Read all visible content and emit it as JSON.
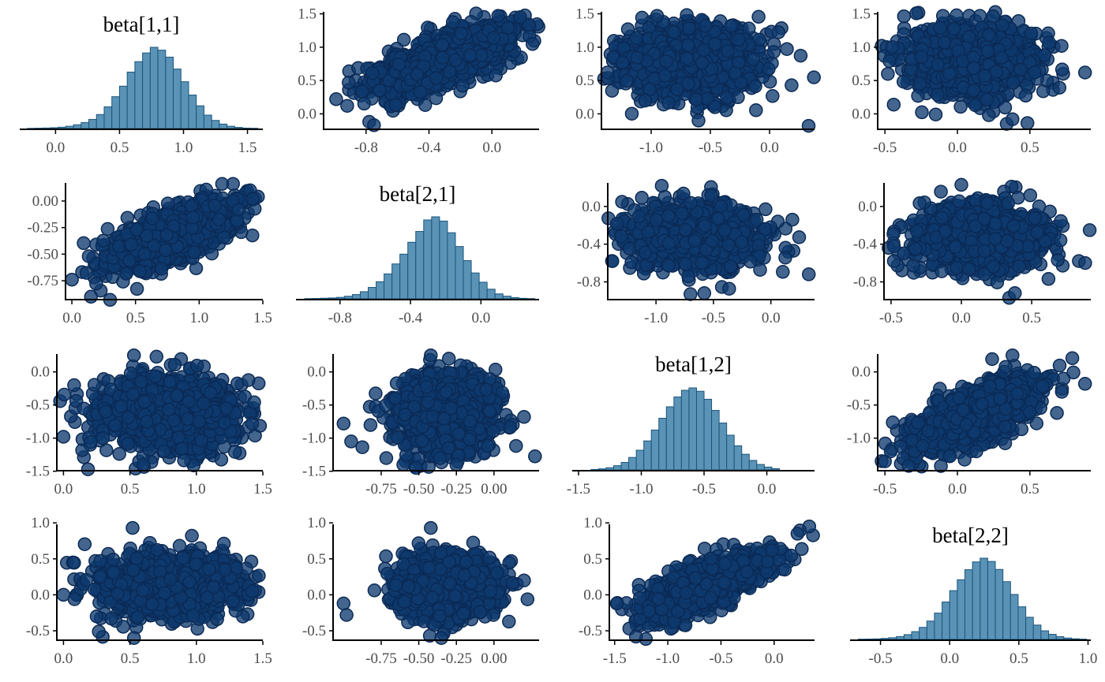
{
  "colors": {
    "hist_fill": "#5A93B6",
    "hist_edge": "#1B557C",
    "point_fill": "#0E3A6E",
    "point_edge": "#0B2A55",
    "axis": "#000000",
    "tick_label": "#4d4d4d"
  },
  "chart_data": [
    {
      "type": "histogram",
      "row": 0,
      "col": 0,
      "title": "beta[1,1]",
      "xlim": [
        -0.28,
        1.62
      ],
      "xticks": [
        0.0,
        0.5,
        1.0,
        1.5
      ],
      "bins_x": [
        -0.22,
        -0.16,
        -0.1,
        -0.04,
        0.02,
        0.08,
        0.14,
        0.2,
        0.26,
        0.32,
        0.38,
        0.44,
        0.5,
        0.56,
        0.62,
        0.68,
        0.74,
        0.8,
        0.86,
        0.92,
        0.98,
        1.04,
        1.1,
        1.16,
        1.22,
        1.28,
        1.34,
        1.4,
        1.46,
        1.52
      ],
      "bin_width": 0.06,
      "counts": [
        0.2,
        0.4,
        0.6,
        0.9,
        1.5,
        2.6,
        4.3,
        6.9,
        10.5,
        16.1,
        24.9,
        36.6,
        48.7,
        64.9,
        76.9,
        86.9,
        93.4,
        90.1,
        82.1,
        68.4,
        53.8,
        38.5,
        26.1,
        15.4,
        9.3,
        5.1,
        2.6,
        1.3,
        0.5,
        0.3
      ]
    },
    {
      "type": "scatter",
      "row": 0,
      "col": 1,
      "xlim": [
        -1.07,
        0.3
      ],
      "ylim": [
        -0.22,
        1.53
      ],
      "xticks": [
        -0.8,
        -0.4,
        0.0
      ],
      "yticks": [
        "0.0",
        "0.5",
        "1.0",
        "1.5"
      ],
      "ytick_vals": [
        0.0,
        0.5,
        1.0,
        1.5
      ],
      "cloud": {
        "mx": -0.32,
        "sx": 0.22,
        "my": 0.8,
        "sy": 0.25,
        "r": 0.7,
        "n": 1300,
        "seed": 11
      },
      "outliers": [
        [
          -0.99,
          0.22
        ],
        [
          -0.92,
          0.12
        ],
        [
          -0.78,
          -0.12
        ],
        [
          -0.75,
          -0.17
        ],
        [
          0.04,
          1.47
        ],
        [
          0.18,
          1.45
        ]
      ]
    },
    {
      "type": "scatter",
      "row": 0,
      "col": 2,
      "xlim": [
        -1.42,
        0.38
      ],
      "ylim": [
        -0.22,
        1.53
      ],
      "xticks": [
        -1.0,
        -0.5,
        0.0
      ],
      "yticks": [
        "0.0",
        "0.5",
        "1.0",
        "1.5"
      ],
      "ytick_vals": [
        0.0,
        0.5,
        1.0,
        1.5
      ],
      "cloud": {
        "mx": -0.65,
        "sx": 0.27,
        "my": 0.8,
        "sy": 0.25,
        "r": 0.0,
        "n": 1300,
        "seed": 12
      },
      "outliers": [
        [
          -1.37,
          0.62
        ],
        [
          -0.95,
          1.47
        ],
        [
          -0.6,
          -0.1
        ],
        [
          0.33,
          -0.18
        ]
      ]
    },
    {
      "type": "scatter",
      "row": 0,
      "col": 3,
      "xlim": [
        -0.55,
        0.92
      ],
      "ylim": [
        -0.22,
        1.53
      ],
      "xticks": [
        -0.5,
        0.0,
        0.5
      ],
      "yticks": [
        "0.0",
        "0.5",
        "1.0",
        "1.5"
      ],
      "ytick_vals": [
        0.0,
        0.5,
        1.0,
        1.5
      ],
      "cloud": {
        "mx": 0.12,
        "sx": 0.21,
        "my": 0.8,
        "sy": 0.25,
        "r": 0.0,
        "n": 1300,
        "seed": 13
      },
      "outliers": [
        [
          -0.48,
          0.6
        ],
        [
          -0.45,
          1.0
        ],
        [
          -0.1,
          1.47
        ],
        [
          0.34,
          -0.15
        ],
        [
          0.38,
          -0.08
        ],
        [
          0.88,
          0.62
        ]
      ]
    },
    {
      "type": "scatter",
      "row": 1,
      "col": 0,
      "xlim": [
        -0.05,
        1.5
      ],
      "ylim": [
        -0.92,
        0.17
      ],
      "xticks": [
        0.0,
        0.5,
        1.0,
        1.5
      ],
      "yticks": [
        "0.00",
        "-0.25",
        "-0.50",
        "-0.75"
      ],
      "ytick_vals": [
        0.0,
        -0.25,
        -0.5,
        -0.75
      ],
      "cloud": {
        "mx": 0.8,
        "sx": 0.25,
        "my": -0.32,
        "sy": 0.16,
        "r": 0.7,
        "n": 1300,
        "seed": 21
      },
      "outliers": [
        [
          0.0,
          -0.74
        ],
        [
          0.15,
          -0.9
        ],
        [
          0.3,
          -0.93
        ],
        [
          1.4,
          0.1
        ],
        [
          1.42,
          0.02
        ],
        [
          1.18,
          0.16
        ]
      ]
    },
    {
      "type": "histogram",
      "row": 1,
      "col": 1,
      "title": "beta[2,1]",
      "xlim": [
        -1.05,
        0.33
      ],
      "xticks": [
        -0.8,
        -0.4,
        0.0
      ],
      "bins_x": [
        -1.0,
        -0.955,
        -0.91,
        -0.865,
        -0.82,
        -0.775,
        -0.73,
        -0.685,
        -0.64,
        -0.595,
        -0.55,
        -0.505,
        -0.46,
        -0.415,
        -0.37,
        -0.325,
        -0.28,
        -0.235,
        -0.19,
        -0.145,
        -0.1,
        -0.055,
        -0.01,
        0.035,
        0.08,
        0.125,
        0.17,
        0.215,
        0.26
      ],
      "bin_width": 0.045,
      "counts": [
        0.3,
        0.4,
        0.7,
        1.0,
        1.7,
        3.0,
        5.0,
        8.4,
        13.4,
        20.1,
        29.3,
        41.0,
        52.5,
        66.5,
        79.2,
        92.7,
        96.4,
        91.4,
        77.7,
        61.5,
        44.9,
        30.4,
        19.5,
        11.3,
        5.8,
        3.1,
        1.5,
        0.6,
        0.3
      ]
    },
    {
      "type": "scatter",
      "row": 1,
      "col": 2,
      "xlim": [
        -1.42,
        0.38
      ],
      "ylim": [
        -0.98,
        0.25
      ],
      "xticks": [
        -1.0,
        -0.5,
        0.0
      ],
      "yticks": [
        "0.0",
        "-0.4",
        "-0.8"
      ],
      "ytick_vals": [
        0.0,
        -0.4,
        -0.8
      ],
      "cloud": {
        "mx": -0.65,
        "sx": 0.27,
        "my": -0.32,
        "sy": 0.16,
        "r": 0.0,
        "n": 1300,
        "seed": 22
      },
      "outliers": [
        [
          -1.38,
          -0.58
        ],
        [
          -0.95,
          0.22
        ],
        [
          -0.7,
          -0.93
        ],
        [
          -0.58,
          -0.92
        ],
        [
          0.33,
          -0.72
        ]
      ]
    },
    {
      "type": "scatter",
      "row": 1,
      "col": 3,
      "xlim": [
        -0.55,
        0.92
      ],
      "ylim": [
        -0.98,
        0.25
      ],
      "xticks": [
        -0.5,
        0.0,
        0.5
      ],
      "yticks": [
        "0.0",
        "-0.4",
        "-0.8"
      ],
      "ytick_vals": [
        0.0,
        -0.4,
        -0.8
      ],
      "cloud": {
        "mx": 0.12,
        "sx": 0.21,
        "my": -0.32,
        "sy": 0.16,
        "r": 0.0,
        "n": 1300,
        "seed": 23
      },
      "outliers": [
        [
          -0.48,
          -0.42
        ],
        [
          -0.48,
          -0.58
        ],
        [
          0.0,
          0.23
        ],
        [
          0.34,
          -0.97
        ],
        [
          0.38,
          -0.92
        ],
        [
          0.88,
          -0.6
        ]
      ]
    },
    {
      "type": "scatter",
      "row": 2,
      "col": 0,
      "xlim": [
        -0.05,
        1.5
      ],
      "ylim": [
        -1.48,
        0.27
      ],
      "xticks": [
        0.0,
        0.5,
        1.0,
        1.5
      ],
      "yticks": [
        "0.0",
        "-0.5",
        "-1.0",
        "-1.5"
      ],
      "ytick_vals": [
        0.0,
        -0.5,
        -1.0,
        -1.5
      ],
      "cloud": {
        "mx": 0.8,
        "sx": 0.25,
        "my": -0.65,
        "sy": 0.27,
        "r": 0.0,
        "n": 1300,
        "seed": 31
      },
      "outliers": [
        [
          0.0,
          -0.98
        ],
        [
          0.08,
          -0.2
        ],
        [
          0.53,
          0.25
        ],
        [
          0.7,
          0.23
        ],
        [
          1.42,
          -0.78
        ],
        [
          0.6,
          -1.4
        ]
      ]
    },
    {
      "type": "scatter",
      "row": 2,
      "col": 1,
      "xlim": [
        -1.07,
        0.3
      ],
      "ylim": [
        -1.48,
        0.27
      ],
      "xticks": [
        -0.75,
        -0.5,
        -0.25,
        0.0
      ],
      "xtick_text": [
        "-0.75",
        "-0.50",
        "-0.25",
        "0.00"
      ],
      "yticks": [
        "0.0",
        "-0.5",
        "-1.0",
        "-1.5"
      ],
      "ytick_vals": [
        0.0,
        -0.5,
        -1.0,
        -1.5
      ],
      "cloud": {
        "mx": -0.32,
        "sx": 0.16,
        "my": -0.65,
        "sy": 0.27,
        "r": 0.0,
        "n": 1300,
        "seed": 32
      },
      "outliers": [
        [
          -1.0,
          -0.78
        ],
        [
          -0.95,
          -1.05
        ],
        [
          -0.42,
          0.25
        ],
        [
          -0.3,
          0.2
        ],
        [
          0.2,
          -0.68
        ],
        [
          -0.25,
          -1.4
        ]
      ]
    },
    {
      "type": "histogram",
      "row": 2,
      "col": 2,
      "title": "beta[1,2]",
      "xlim": [
        -1.55,
        0.38
      ],
      "xticks": [
        -1.5,
        -1.0,
        -0.5,
        0.0
      ],
      "bins_x": [
        -1.4,
        -1.34,
        -1.28,
        -1.22,
        -1.16,
        -1.1,
        -1.04,
        -0.98,
        -0.92,
        -0.86,
        -0.8,
        -0.74,
        -0.68,
        -0.62,
        -0.56,
        -0.5,
        -0.44,
        -0.38,
        -0.32,
        -0.26,
        -0.2,
        -0.14,
        -0.08,
        -0.02,
        0.04
      ],
      "bin_width": 0.06,
      "counts": [
        0.5,
        1.2,
        2.5,
        4.8,
        8.5,
        14.2,
        22.4,
        33.0,
        45.4,
        58.8,
        71.8,
        83.0,
        90.6,
        93.3,
        89.5,
        80.4,
        67.7,
        53.4,
        39.5,
        27.4,
        17.8,
        10.8,
        6.2,
        3.2,
        1.5
      ]
    },
    {
      "type": "scatter",
      "row": 2,
      "col": 3,
      "xlim": [
        -0.55,
        0.92
      ],
      "ylim": [
        -1.48,
        0.27
      ],
      "xticks": [
        -0.5,
        0.0,
        0.5
      ],
      "yticks": [
        "0.0",
        "-0.5",
        "-1.0"
      ],
      "ytick_vals": [
        0.0,
        -0.5,
        -1.0
      ],
      "cloud": {
        "mx": 0.12,
        "sx": 0.21,
        "my": -0.65,
        "sy": 0.27,
        "r": 0.7,
        "n": 1300,
        "seed": 33
      },
      "outliers": [
        [
          -0.5,
          -1.35
        ],
        [
          -0.46,
          -1.2
        ],
        [
          0.38,
          0.25
        ],
        [
          0.72,
          -0.3
        ],
        [
          0.88,
          -0.18
        ]
      ]
    },
    {
      "type": "scatter",
      "row": 3,
      "col": 0,
      "xlim": [
        -0.05,
        1.5
      ],
      "ylim": [
        -0.62,
        0.98
      ],
      "xticks": [
        0.0,
        0.5,
        1.0,
        1.5
      ],
      "yticks": [
        "1.0",
        "0.5",
        "0.0",
        "-0.5"
      ],
      "ytick_vals": [
        1.0,
        0.5,
        0.0,
        -0.5
      ],
      "cloud": {
        "mx": 0.8,
        "sx": 0.25,
        "my": 0.12,
        "sy": 0.21,
        "r": 0.0,
        "n": 1300,
        "seed": 41
      },
      "outliers": [
        [
          0.0,
          0.0
        ],
        [
          0.52,
          0.93
        ],
        [
          0.53,
          -0.6
        ],
        [
          1.42,
          0.05
        ],
        [
          0.25,
          -0.3
        ]
      ]
    },
    {
      "type": "scatter",
      "row": 3,
      "col": 1,
      "xlim": [
        -1.07,
        0.3
      ],
      "ylim": [
        -0.62,
        0.98
      ],
      "xticks": [
        -0.75,
        -0.5,
        -0.25,
        0.0
      ],
      "xtick_text": [
        "-0.75",
        "-0.50",
        "-0.25",
        "0.00"
      ],
      "yticks": [
        "1.0",
        "0.5",
        "0.0",
        "-0.5"
      ],
      "ytick_vals": [
        1.0,
        0.5,
        0.0,
        -0.5
      ],
      "cloud": {
        "mx": -0.32,
        "sx": 0.16,
        "my": 0.12,
        "sy": 0.21,
        "r": 0.0,
        "n": 1300,
        "seed": 42
      },
      "outliers": [
        [
          -1.0,
          -0.12
        ],
        [
          -0.98,
          -0.28
        ],
        [
          -0.42,
          0.93
        ],
        [
          -0.35,
          -0.6
        ],
        [
          0.2,
          0.2
        ]
      ]
    },
    {
      "type": "scatter",
      "row": 3,
      "col": 2,
      "xlim": [
        -1.55,
        0.38
      ],
      "ylim": [
        -0.62,
        0.98
      ],
      "xticks": [
        -1.5,
        -1.0,
        -0.5,
        0.0
      ],
      "yticks": [
        "1.0",
        "0.5",
        "0.0",
        "-0.5"
      ],
      "ytick_vals": [
        1.0,
        0.5,
        0.0,
        -0.5
      ],
      "cloud": {
        "mx": -0.65,
        "sx": 0.27,
        "my": 0.12,
        "sy": 0.21,
        "r": 0.7,
        "n": 1300,
        "seed": 43
      },
      "outliers": [
        [
          -1.48,
          -0.12
        ],
        [
          -1.3,
          -0.58
        ],
        [
          0.22,
          0.85
        ],
        [
          0.33,
          0.95
        ],
        [
          0.1,
          0.35
        ]
      ]
    },
    {
      "type": "histogram",
      "row": 3,
      "col": 3,
      "title": "beta[2,2]",
      "xlim": [
        -0.72,
        1.02
      ],
      "xticks": [
        -0.5,
        0.0,
        0.5,
        1.0
      ],
      "bins_x": [
        -0.66,
        -0.605,
        -0.55,
        -0.495,
        -0.44,
        -0.385,
        -0.33,
        -0.275,
        -0.22,
        -0.165,
        -0.11,
        -0.055,
        0.0,
        0.055,
        0.11,
        0.165,
        0.22,
        0.275,
        0.33,
        0.385,
        0.44,
        0.495,
        0.55,
        0.605,
        0.66,
        0.715,
        0.77,
        0.825,
        0.88,
        0.935
      ],
      "bin_width": 0.055,
      "counts": [
        0.3,
        0.4,
        0.6,
        1.1,
        1.8,
        3.1,
        5.2,
        8.4,
        13.0,
        19.8,
        28.4,
        40.4,
        52.6,
        64.4,
        75.2,
        83.6,
        87.6,
        84.1,
        75.5,
        62.3,
        48.5,
        35.2,
        23.9,
        15.5,
        9.3,
        5.5,
        3.0,
        1.5,
        0.7,
        0.3
      ]
    }
  ]
}
